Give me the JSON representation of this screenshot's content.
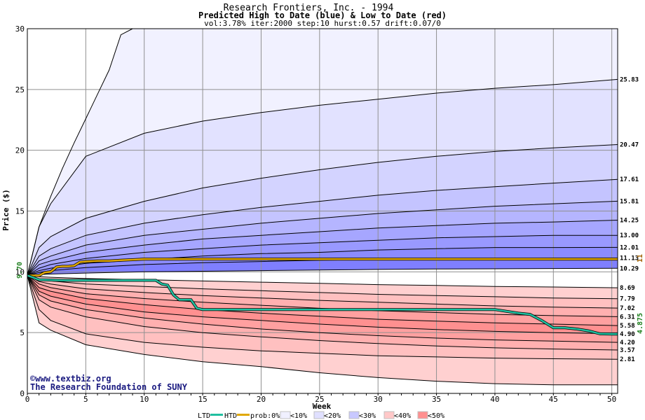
{
  "chart_data": {
    "type": "area",
    "title": "Research Frontiers, Inc. - 1994",
    "subtitle": "Predicted High to Date (blue) &  Low to Date (red)",
    "params": "vol:3.78% iter:2000 step:10 hurst:0.57 drift:0.07/0",
    "xlabel": "Week",
    "ylabel": "Price ($)",
    "xlim": [
      0,
      50.5
    ],
    "ylim": [
      0,
      30
    ],
    "x_ticks": [
      0,
      5,
      10,
      15,
      20,
      25,
      30,
      35,
      40,
      45,
      50
    ],
    "y_ticks": [
      0,
      5,
      10,
      15,
      20,
      25,
      30
    ],
    "grid": true,
    "start_price": 9.7,
    "start_label": "9.70",
    "high_percentile_bands": [
      {
        "end_label": "25.83",
        "values_at_weeks": {
          "x": [
            0,
            1,
            2,
            5,
            10,
            15,
            20,
            25,
            30,
            35,
            40,
            45,
            50.5
          ],
          "y": [
            9.7,
            13.7,
            15.6,
            19.5,
            21.4,
            22.4,
            23.1,
            23.7,
            24.2,
            24.7,
            25.1,
            25.4,
            25.83
          ]
        }
      },
      {
        "end_label": "20.47",
        "values_at_weeks": {
          "x": [
            0,
            1,
            2,
            5,
            10,
            15,
            20,
            25,
            30,
            35,
            40,
            45,
            50.5
          ],
          "y": [
            9.7,
            12.0,
            12.9,
            14.4,
            15.8,
            16.9,
            17.7,
            18.4,
            19.0,
            19.5,
            19.9,
            20.2,
            20.47
          ]
        }
      },
      {
        "end_label": "17.61",
        "values_at_weeks": {
          "x": [
            0,
            1,
            2,
            5,
            10,
            15,
            20,
            25,
            30,
            35,
            40,
            45,
            50.5
          ],
          "y": [
            9.7,
            11.3,
            11.9,
            13.0,
            14.0,
            14.7,
            15.3,
            15.8,
            16.3,
            16.7,
            17.0,
            17.3,
            17.61
          ]
        }
      },
      {
        "end_label": "15.81",
        "values_at_weeks": {
          "x": [
            0,
            1,
            2,
            5,
            10,
            15,
            20,
            25,
            30,
            35,
            40,
            45,
            50.5
          ],
          "y": [
            9.7,
            10.9,
            11.3,
            12.2,
            13.0,
            13.5,
            14.0,
            14.4,
            14.8,
            15.1,
            15.4,
            15.6,
            15.81
          ]
        }
      },
      {
        "end_label": "14.25",
        "values_at_weeks": {
          "x": [
            0,
            1,
            2,
            5,
            10,
            15,
            20,
            25,
            30,
            35,
            40,
            45,
            50.5
          ],
          "y": [
            9.7,
            10.6,
            10.9,
            11.6,
            12.2,
            12.7,
            13.0,
            13.3,
            13.6,
            13.8,
            14.0,
            14.1,
            14.25
          ]
        }
      },
      {
        "end_label": "13.00",
        "values_at_weeks": {
          "x": [
            0,
            1,
            2,
            5,
            10,
            15,
            20,
            25,
            30,
            35,
            40,
            45,
            50.5
          ],
          "y": [
            9.7,
            10.3,
            10.6,
            11.1,
            11.6,
            11.9,
            12.2,
            12.4,
            12.6,
            12.8,
            12.9,
            13.0,
            13.0
          ]
        }
      },
      {
        "end_label": "12.01",
        "values_at_weeks": {
          "x": [
            0,
            1,
            2,
            5,
            10,
            15,
            20,
            25,
            30,
            35,
            40,
            45,
            50.5
          ],
          "y": [
            9.7,
            10.1,
            10.3,
            10.7,
            11.0,
            11.3,
            11.5,
            11.6,
            11.8,
            11.9,
            12.0,
            12.0,
            12.01
          ]
        }
      },
      {
        "end_label": "11.13",
        "values_at_weeks": {
          "x": [
            0,
            1,
            2,
            5,
            10,
            15,
            20,
            25,
            30,
            35,
            40,
            45,
            50.5
          ],
          "y": [
            9.7,
            9.95,
            10.1,
            10.35,
            10.6,
            10.75,
            10.85,
            10.95,
            11.0,
            11.05,
            11.1,
            11.12,
            11.13
          ]
        }
      },
      {
        "end_label": "10.29",
        "values_at_weeks": {
          "x": [
            0,
            1,
            2,
            5,
            10,
            15,
            20,
            25,
            30,
            35,
            40,
            45,
            50.5
          ],
          "y": [
            9.7,
            9.78,
            9.82,
            9.9,
            10.0,
            10.05,
            10.1,
            10.15,
            10.2,
            10.23,
            10.25,
            10.27,
            10.29
          ]
        }
      }
    ],
    "low_percentile_bands": [
      {
        "end_label": "8.69",
        "values_at_weeks": {
          "x": [
            0,
            1,
            2,
            5,
            10,
            15,
            20,
            25,
            30,
            35,
            40,
            45,
            50.5
          ],
          "y": [
            9.7,
            9.6,
            9.55,
            9.45,
            9.35,
            9.25,
            9.15,
            9.05,
            8.95,
            8.88,
            8.8,
            8.75,
            8.69
          ]
        }
      },
      {
        "end_label": "7.79",
        "values_at_weeks": {
          "x": [
            0,
            1,
            2,
            5,
            10,
            15,
            20,
            25,
            30,
            35,
            40,
            45,
            50.5
          ],
          "y": [
            9.7,
            9.4,
            9.25,
            9.0,
            8.8,
            8.6,
            8.45,
            8.3,
            8.15,
            8.05,
            7.95,
            7.85,
            7.79
          ]
        }
      },
      {
        "end_label": "7.02",
        "values_at_weeks": {
          "x": [
            0,
            1,
            2,
            5,
            10,
            15,
            20,
            25,
            30,
            35,
            40,
            45,
            50.5
          ],
          "y": [
            9.7,
            9.2,
            9.0,
            8.6,
            8.3,
            8.05,
            7.85,
            7.65,
            7.5,
            7.35,
            7.2,
            7.1,
            7.02
          ]
        }
      },
      {
        "end_label": "6.31",
        "values_at_weeks": {
          "x": [
            0,
            1,
            2,
            5,
            10,
            15,
            20,
            25,
            30,
            35,
            40,
            45,
            50.5
          ],
          "y": [
            9.7,
            9.0,
            8.7,
            8.2,
            7.8,
            7.5,
            7.25,
            7.0,
            6.8,
            6.65,
            6.5,
            6.4,
            6.31
          ]
        }
      },
      {
        "end_label": "5.58",
        "values_at_weeks": {
          "x": [
            0,
            1,
            2,
            5,
            10,
            15,
            20,
            25,
            30,
            35,
            40,
            45,
            50.5
          ],
          "y": [
            9.7,
            8.7,
            8.4,
            7.8,
            7.3,
            6.9,
            6.6,
            6.35,
            6.1,
            5.95,
            5.8,
            5.7,
            5.58
          ]
        }
      },
      {
        "end_label": "4.90",
        "values_at_weeks": {
          "x": [
            0,
            1,
            2,
            5,
            10,
            15,
            20,
            25,
            30,
            35,
            40,
            45,
            50.5
          ],
          "y": [
            9.7,
            8.4,
            8.0,
            7.35,
            6.7,
            6.3,
            6.0,
            5.7,
            5.45,
            5.25,
            5.1,
            5.0,
            4.9
          ]
        }
      },
      {
        "end_label": "4.20",
        "values_at_weeks": {
          "x": [
            0,
            1,
            2,
            5,
            10,
            15,
            20,
            25,
            30,
            35,
            40,
            45,
            50.5
          ],
          "y": [
            9.7,
            8.1,
            7.6,
            6.9,
            6.2,
            5.7,
            5.3,
            5.0,
            4.75,
            4.55,
            4.4,
            4.3,
            4.2
          ]
        }
      },
      {
        "end_label": "3.57",
        "values_at_weeks": {
          "x": [
            0,
            1,
            2,
            5,
            10,
            15,
            20,
            25,
            30,
            35,
            40,
            45,
            50.5
          ],
          "y": [
            9.7,
            7.7,
            7.1,
            6.3,
            5.5,
            5.0,
            4.65,
            4.35,
            4.1,
            3.9,
            3.75,
            3.65,
            3.57
          ]
        }
      },
      {
        "end_label": "2.81",
        "values_at_weeks": {
          "x": [
            0,
            1,
            2,
            5,
            10,
            15,
            20,
            25,
            30,
            35,
            40,
            45,
            50.5
          ],
          "y": [
            9.7,
            6.9,
            6.0,
            4.9,
            4.2,
            3.8,
            3.5,
            3.3,
            3.1,
            3.0,
            2.9,
            2.85,
            2.81
          ]
        }
      },
      {
        "end_label": "",
        "values_at_weeks": {
          "x": [
            0,
            1,
            2,
            5,
            10,
            15,
            20,
            25,
            30,
            35,
            40,
            45,
            50.5
          ],
          "y": [
            9.7,
            5.8,
            5.2,
            4.0,
            3.2,
            2.6,
            2.2,
            1.7,
            1.3,
            1.0,
            0.8,
            0.7,
            0.7
          ]
        }
      }
    ],
    "outer_high_curve": {
      "x": [
        0,
        1,
        2,
        3,
        4,
        5,
        6,
        7,
        8,
        9
      ],
      "y": [
        9.7,
        13.7,
        16.2,
        18.5,
        20.6,
        22.6,
        24.6,
        26.6,
        29.5,
        30.0
      ]
    },
    "htd_series": {
      "name": "HTD",
      "end_label": "11",
      "x": [
        0,
        1,
        1.5,
        2,
        2.5,
        3,
        3.5,
        4,
        4.5,
        5,
        6,
        7,
        8,
        9,
        10,
        12,
        15,
        20,
        25,
        30,
        35,
        40,
        45,
        50.5
      ],
      "y": [
        9.7,
        9.7,
        9.95,
        10.0,
        10.4,
        10.45,
        10.45,
        10.5,
        10.8,
        10.85,
        10.9,
        10.9,
        10.95,
        11.0,
        11.05,
        11.05,
        11.05,
        11.05,
        11.05,
        11.05,
        11.05,
        11.05,
        11.05,
        11.05
      ]
    },
    "ltd_series": {
      "name": "LTD",
      "end_label": "4.875",
      "x": [
        0,
        1,
        3,
        5,
        8,
        11,
        11.5,
        12,
        12.5,
        13,
        14,
        14.5,
        15,
        20,
        25,
        30,
        35,
        40,
        42,
        43,
        44,
        45,
        46,
        47,
        48,
        49,
        50,
        50.5
      ],
      "y": [
        9.7,
        9.35,
        9.3,
        9.3,
        9.3,
        9.3,
        9.0,
        8.9,
        8.1,
        7.7,
        7.7,
        7.0,
        6.9,
        6.9,
        6.9,
        6.9,
        6.9,
        6.9,
        6.6,
        6.5,
        6.0,
        5.4,
        5.4,
        5.3,
        5.15,
        4.9,
        4.875,
        4.875
      ]
    }
  },
  "credits": {
    "site": "www.textbiz.org",
    "org": "The Research Foundation of SUNY"
  },
  "legend": {
    "ltd": "LTD",
    "htd": "HTD",
    "prob": "prob:0%",
    "p10": "<10%",
    "p20": "<20%",
    "p30": "<30%",
    "p40": "<40%",
    "p50": "<50%"
  },
  "colors": {
    "htd": "#e0a800",
    "ltd": "#20c0a0",
    "start_label": "#208020",
    "end_htd_label": "#a06000",
    "end_ltd_label": "#208020",
    "blue_fills": [
      "#f1f1ff",
      "#e2e2ff",
      "#d3d3ff",
      "#c4c4ff",
      "#b5b5ff",
      "#a6a6ff",
      "#9999ff",
      "#8b8bff",
      "#7f7fff"
    ],
    "red_fills": [
      "#ff8080",
      "#ff9090",
      "#ffa0a0",
      "#ffb0b0",
      "#ffc0c0",
      "#ffd0d0",
      "#ffdcdc",
      "#ffe8e8",
      "#fff0f0"
    ],
    "legend_swatches": [
      "#ffffff",
      "#f0f0ff",
      "#e0e0ff",
      "#c8c8ff",
      "#ffc8c8",
      "#ff9090",
      "#8080ff"
    ]
  }
}
